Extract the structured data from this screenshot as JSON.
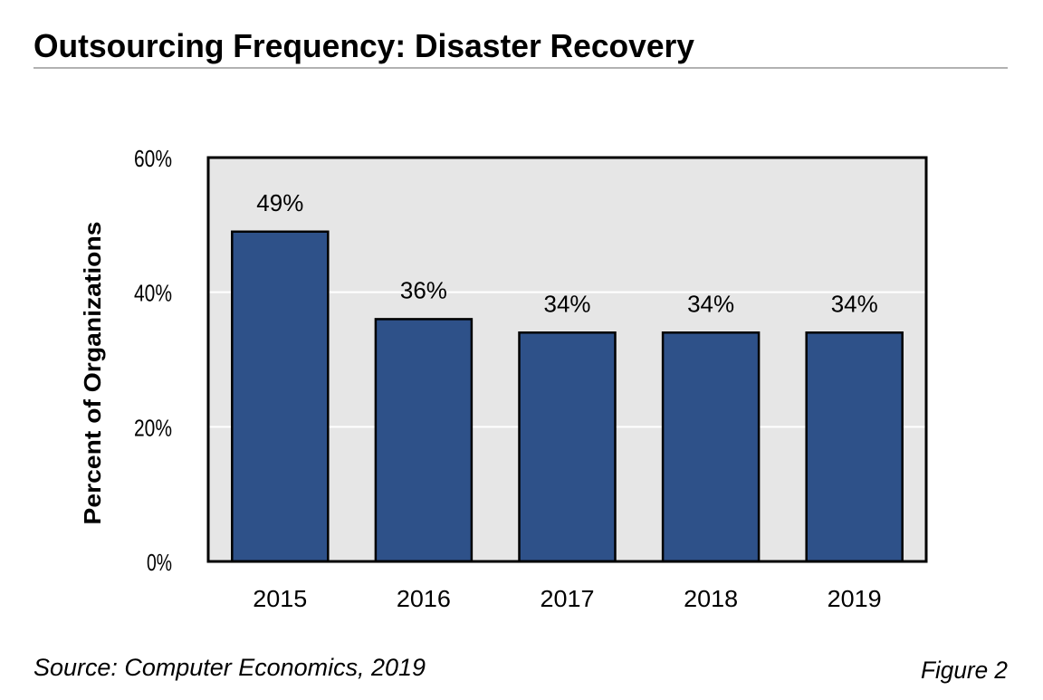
{
  "title": "Outsourcing Frequency: Disaster Recovery",
  "source": "Source: Computer Economics, 2019",
  "figure_label": "Figure 2",
  "colors": {
    "bar": "#2e5189",
    "plot_bg": "#e6e6e6",
    "grid": "#ffffff",
    "rule": "#999999"
  },
  "chart_data": {
    "type": "bar",
    "title": "Outsourcing Frequency: Disaster Recovery",
    "xlabel": "",
    "ylabel": "Percent of Organizations",
    "categories": [
      "2015",
      "2016",
      "2017",
      "2018",
      "2019"
    ],
    "values": [
      49,
      36,
      34,
      34,
      34
    ],
    "data_labels": [
      "49%",
      "36%",
      "34%",
      "34%",
      "34%"
    ],
    "ylim": [
      0,
      60
    ],
    "yticks": [
      0,
      20,
      40,
      60
    ],
    "ytick_labels": [
      "0%",
      "20%",
      "40%",
      "60%"
    ],
    "grid": true,
    "legend": "none"
  }
}
